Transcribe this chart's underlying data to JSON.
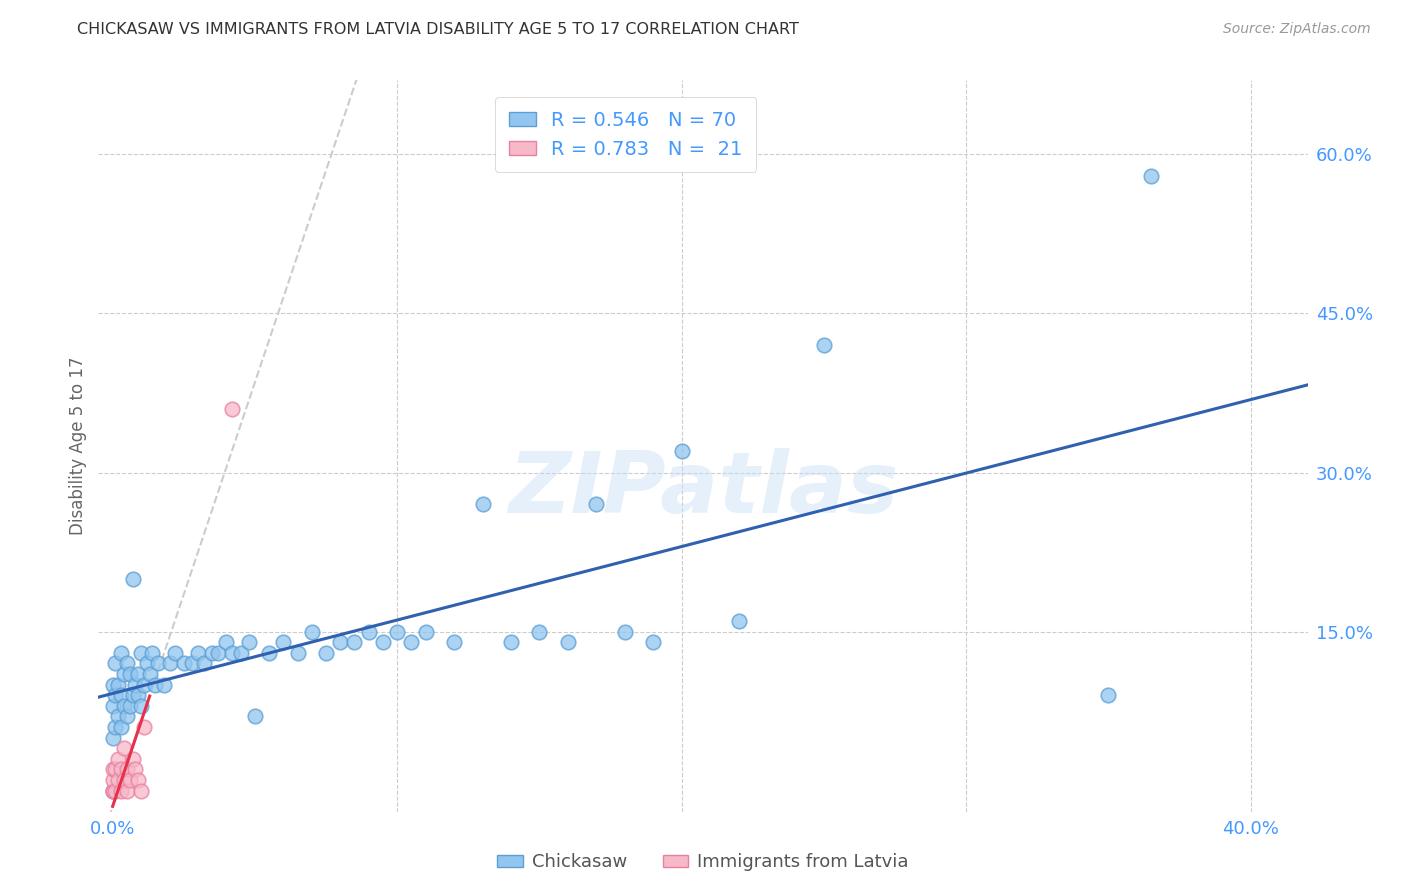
{
  "title": "CHICKASAW VS IMMIGRANTS FROM LATVIA DISABILITY AGE 5 TO 17 CORRELATION CHART",
  "source": "Source: ZipAtlas.com",
  "ylabel": "Disability Age 5 to 17",
  "xlim": [
    -0.005,
    0.42
  ],
  "ylim": [
    -0.02,
    0.67
  ],
  "chickasaw_color": "#92C5F0",
  "chickasaw_edge_color": "#5B9FD4",
  "latvia_color": "#F7B8C8",
  "latvia_edge_color": "#E880A0",
  "chickasaw_line_color": "#3060B0",
  "latvia_line_color": "#E8304A",
  "chickasaw_R": 0.546,
  "chickasaw_N": 70,
  "latvia_R": 0.783,
  "latvia_N": 21,
  "watermark": "ZIPatlas",
  "background_color": "#ffffff",
  "grid_color": "#cccccc",
  "title_color": "#333333",
  "source_color": "#999999",
  "tick_color": "#4499ff",
  "ylabel_color": "#666666",
  "chickasaw_x": [
    0.0,
    0.0,
    0.0,
    0.0,
    0.001,
    0.001,
    0.001,
    0.002,
    0.002,
    0.003,
    0.003,
    0.003,
    0.004,
    0.004,
    0.005,
    0.005,
    0.006,
    0.006,
    0.007,
    0.007,
    0.008,
    0.009,
    0.009,
    0.01,
    0.01,
    0.011,
    0.012,
    0.013,
    0.014,
    0.015,
    0.016,
    0.018,
    0.02,
    0.022,
    0.025,
    0.028,
    0.03,
    0.032,
    0.035,
    0.037,
    0.04,
    0.042,
    0.045,
    0.048,
    0.05,
    0.055,
    0.06,
    0.065,
    0.07,
    0.075,
    0.08,
    0.085,
    0.09,
    0.095,
    0.1,
    0.105,
    0.11,
    0.12,
    0.13,
    0.14,
    0.15,
    0.16,
    0.17,
    0.18,
    0.19,
    0.2,
    0.22,
    0.25,
    0.35,
    0.365
  ],
  "chickasaw_y": [
    0.0,
    0.05,
    0.08,
    0.1,
    0.06,
    0.09,
    0.12,
    0.07,
    0.1,
    0.06,
    0.09,
    0.13,
    0.08,
    0.11,
    0.07,
    0.12,
    0.08,
    0.11,
    0.09,
    0.2,
    0.1,
    0.11,
    0.09,
    0.08,
    0.13,
    0.1,
    0.12,
    0.11,
    0.13,
    0.1,
    0.12,
    0.1,
    0.12,
    0.13,
    0.12,
    0.12,
    0.13,
    0.12,
    0.13,
    0.13,
    0.14,
    0.13,
    0.13,
    0.14,
    0.07,
    0.13,
    0.14,
    0.13,
    0.15,
    0.13,
    0.14,
    0.14,
    0.15,
    0.14,
    0.15,
    0.14,
    0.15,
    0.14,
    0.27,
    0.14,
    0.15,
    0.14,
    0.27,
    0.15,
    0.14,
    0.32,
    0.16,
    0.42,
    0.09,
    0.58
  ],
  "latvia_x": [
    0.0,
    0.0,
    0.0,
    0.0,
    0.001,
    0.001,
    0.002,
    0.002,
    0.003,
    0.003,
    0.004,
    0.004,
    0.005,
    0.005,
    0.006,
    0.007,
    0.008,
    0.009,
    0.01,
    0.011,
    0.042
  ],
  "latvia_y": [
    0.0,
    0.0,
    0.01,
    0.02,
    0.0,
    0.02,
    0.01,
    0.03,
    0.0,
    0.02,
    0.01,
    0.04,
    0.0,
    0.02,
    0.01,
    0.03,
    0.02,
    0.01,
    0.0,
    0.06,
    0.36
  ]
}
